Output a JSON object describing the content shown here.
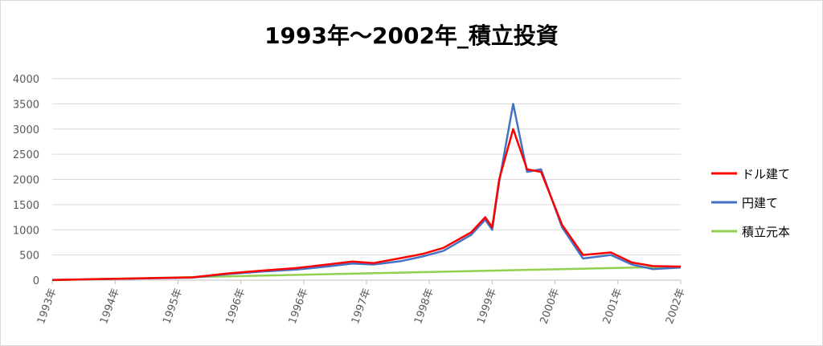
{
  "chart_data": {
    "type": "line",
    "title": "1993年～2002年_積立投資",
    "xlabel": "",
    "ylabel": "",
    "ylim": [
      0,
      4000
    ],
    "yticks": [
      0,
      500,
      1000,
      1500,
      2000,
      2500,
      3000,
      3500,
      4000
    ],
    "xlim": [
      1993.0,
      2002.0
    ],
    "xtick_labels": [
      "1993年",
      "1994年",
      "1995年",
      "1996年",
      "1996年",
      "1997年",
      "1998年",
      "1999年",
      "2000年",
      "2001年",
      "2002年"
    ],
    "grid": "horizontal",
    "legend_position": "right",
    "series": [
      {
        "name": "ドル建て",
        "color": "#ff0000",
        "x": [
          1993.0,
          1994.0,
          1995.0,
          1995.5,
          1996.0,
          1996.5,
          1997.0,
          1997.3,
          1997.6,
          1998.0,
          1998.3,
          1998.6,
          1999.0,
          1999.2,
          1999.3,
          1999.4,
          1999.6,
          1999.8,
          2000.0,
          2000.3,
          2000.6,
          2001.0,
          2001.3,
          2001.6,
          2002.0
        ],
        "y": [
          5,
          30,
          55,
          130,
          190,
          240,
          320,
          370,
          340,
          440,
          520,
          640,
          950,
          1250,
          1050,
          2000,
          3000,
          2200,
          2150,
          1100,
          500,
          550,
          350,
          280,
          270
        ]
      },
      {
        "name": "円建て",
        "color": "#4472c4",
        "x": [
          1993.0,
          1994.0,
          1995.0,
          1995.5,
          1996.0,
          1996.5,
          1997.0,
          1997.3,
          1997.6,
          1998.0,
          1998.3,
          1998.6,
          1999.0,
          1999.2,
          1999.3,
          1999.4,
          1999.6,
          1999.8,
          2000.0,
          2000.3,
          2000.6,
          2001.0,
          2001.3,
          2001.6,
          2002.0
        ],
        "y": [
          5,
          28,
          50,
          120,
          170,
          210,
          280,
          330,
          310,
          380,
          470,
          580,
          900,
          1200,
          1000,
          1950,
          3500,
          2150,
          2200,
          1050,
          430,
          500,
          310,
          220,
          250
        ]
      },
      {
        "name": "積立元本",
        "color": "#92d050",
        "x": [
          1993.0,
          2002.0
        ],
        "y": [
          0,
          270
        ]
      }
    ]
  }
}
